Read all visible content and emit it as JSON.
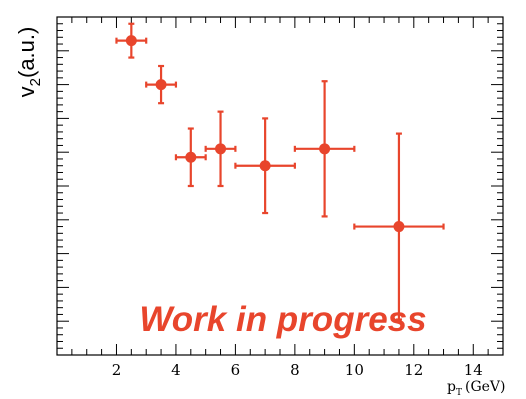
{
  "colors": {
    "marker": "#e8452c",
    "axis": "#000000",
    "annotation": "#e8452c"
  },
  "chart_data": {
    "type": "scatter",
    "title": "",
    "xlabel_main": "p",
    "xlabel_sub": "T",
    "xlabel_unit": "(GeV)",
    "ylabel_main": "v",
    "ylabel_sub": "2",
    "ylabel_unit": "(a.u.)",
    "xlim": [
      0,
      15
    ],
    "ylim": [
      0,
      10
    ],
    "xticks": [
      2,
      4,
      6,
      8,
      10,
      12,
      14
    ],
    "xtick_labels": [
      "2",
      "4",
      "6",
      "8",
      "10",
      "12",
      "14"
    ],
    "yticks_major": [
      1,
      2,
      3,
      4,
      5,
      6,
      7,
      8,
      9,
      10
    ],
    "grid": false,
    "annotation": "Work in progress",
    "series": [
      {
        "points": [
          {
            "x": 2.5,
            "y": 9.3,
            "xerr": 0.5,
            "yerr": 0.5
          },
          {
            "x": 3.5,
            "y": 8.0,
            "xerr": 0.5,
            "yerr": 0.55
          },
          {
            "x": 4.5,
            "y": 5.85,
            "xerr": 0.5,
            "yerr": 0.85
          },
          {
            "x": 5.5,
            "y": 6.1,
            "xerr": 0.5,
            "yerr": 1.1
          },
          {
            "x": 7.0,
            "y": 5.6,
            "xerr": 1.0,
            "yerr": 1.4
          },
          {
            "x": 9.0,
            "y": 6.1,
            "xerr": 1.0,
            "yerr": 2.0
          },
          {
            "x": 11.5,
            "y": 3.8,
            "xerr": 1.5,
            "yerr": 2.75
          }
        ]
      }
    ]
  }
}
